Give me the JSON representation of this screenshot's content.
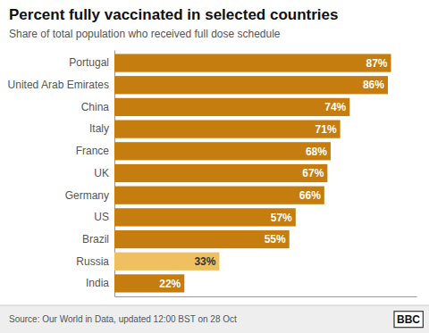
{
  "chart_data": {
    "type": "bar",
    "orientation": "horizontal",
    "title": "Percent fully vaccinated in selected countries",
    "subtitle": "Share of total population who received full dose schedule",
    "categories": [
      "India",
      "Russia",
      "Brazil",
      "US",
      "Germany",
      "UK",
      "France",
      "Italy",
      "China",
      "United Arab Emirates",
      "Portugal"
    ],
    "values": [
      22,
      33,
      55,
      57,
      66,
      67,
      68,
      71,
      74,
      86,
      87
    ],
    "value_labels": [
      "22%",
      "33%",
      "55%",
      "57%",
      "66%",
      "67%",
      "68%",
      "71%",
      "74%",
      "86%",
      "87%"
    ],
    "colors": [
      "#c47d0e",
      "#f0c060",
      "#c47d0e",
      "#c47d0e",
      "#c47d0e",
      "#c47d0e",
      "#c47d0e",
      "#c47d0e",
      "#c47d0e",
      "#c47d0e",
      "#c47d0e"
    ],
    "xlim": [
      0,
      95
    ],
    "data_labels": true,
    "tick_labels": "y",
    "grid": false,
    "annotations": [
      "Source: Our World in Data, updated 12:00 BST on 28 Oct",
      "BBC"
    ]
  }
}
